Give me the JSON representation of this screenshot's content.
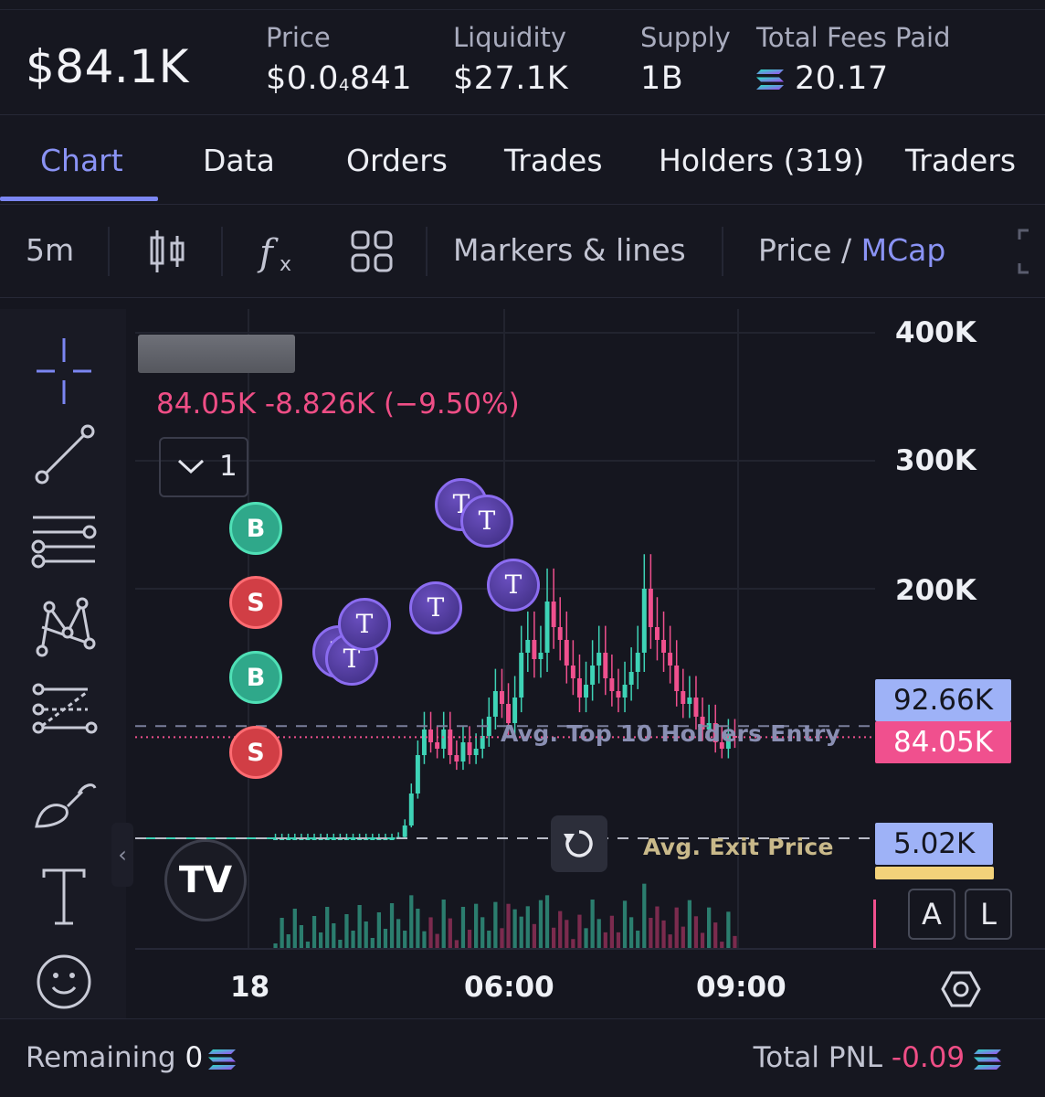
{
  "header": {
    "market_cap": "$84.1K",
    "stats": [
      {
        "label": "Price",
        "value_main": "$0.0",
        "value_sub": "4",
        "value_tail": "841"
      },
      {
        "label": "Liquidity",
        "value": "$27.1K"
      },
      {
        "label": "Supply",
        "value": "1B"
      },
      {
        "label": "Total Fees Paid",
        "value": "20.17",
        "icon": "solana-icon"
      }
    ]
  },
  "tabs": [
    "Chart",
    "Data",
    "Orders",
    "Trades",
    "Holders (319)",
    "Traders"
  ],
  "active_tab": "Chart",
  "toolbar": {
    "interval": "5m",
    "markers": "Markers & lines",
    "price_label": "Price",
    "slash": " / ",
    "mcap_label": "MCap"
  },
  "chart": {
    "ohlc_text": "84.05K  -8.826K (−9.50%)",
    "series_count": "1",
    "y_ticks": [
      "400K",
      "300K",
      "200K"
    ],
    "x_ticks": [
      "18",
      "06:00",
      "09:00"
    ],
    "price_tags": {
      "top10_entry": "92.66K",
      "current": "84.05K",
      "exit": "5.02K"
    },
    "line_labels": {
      "top10": "Avg. Top 10 Holders Entry",
      "exit": "Avg. Exit Price"
    },
    "markers": {
      "buy": "B",
      "sell": "S",
      "trade": "T"
    },
    "scale_buttons": [
      "A",
      "L"
    ],
    "logo_text": "TV",
    "colors": {
      "up": "#3ed3b6",
      "down": "#f0508e",
      "accent": "#7b86f2"
    }
  },
  "chart_data": {
    "type": "candlestick",
    "y_unit": "market cap",
    "ylim": [
      0,
      420000
    ],
    "x_ticks": [
      "18",
      "06:00",
      "09:00"
    ],
    "reference_lines": [
      {
        "name": "Avg. Top 10 Holders Entry",
        "value": 92660
      },
      {
        "name": "current",
        "value": 84050
      },
      {
        "name": "Avg. Exit Price",
        "value": 5020
      }
    ],
    "close_series": [
      5000,
      5000,
      5000,
      5000,
      5000,
      5000,
      5000,
      5000,
      5000,
      5000,
      5000,
      5000,
      5000,
      5000,
      5000,
      5000,
      5000,
      5000,
      5000,
      6000,
      15000,
      40000,
      70000,
      90000,
      80000,
      75000,
      90000,
      70000,
      65000,
      80000,
      70000,
      75000,
      85000,
      100000,
      120000,
      110000,
      95000,
      115000,
      150000,
      160000,
      145000,
      150000,
      190000,
      170000,
      160000,
      140000,
      130000,
      115000,
      125000,
      140000,
      150000,
      130000,
      120000,
      115000,
      125000,
      135000,
      150000,
      200000,
      170000,
      160000,
      150000,
      140000,
      120000,
      110000,
      115000,
      100000,
      90000,
      95000,
      80000,
      75000,
      85000,
      84050
    ]
  },
  "footer": {
    "remaining_label": "Remaining",
    "remaining_value": "0",
    "pnl_label": "Total PNL",
    "pnl_value": "-0.09"
  }
}
